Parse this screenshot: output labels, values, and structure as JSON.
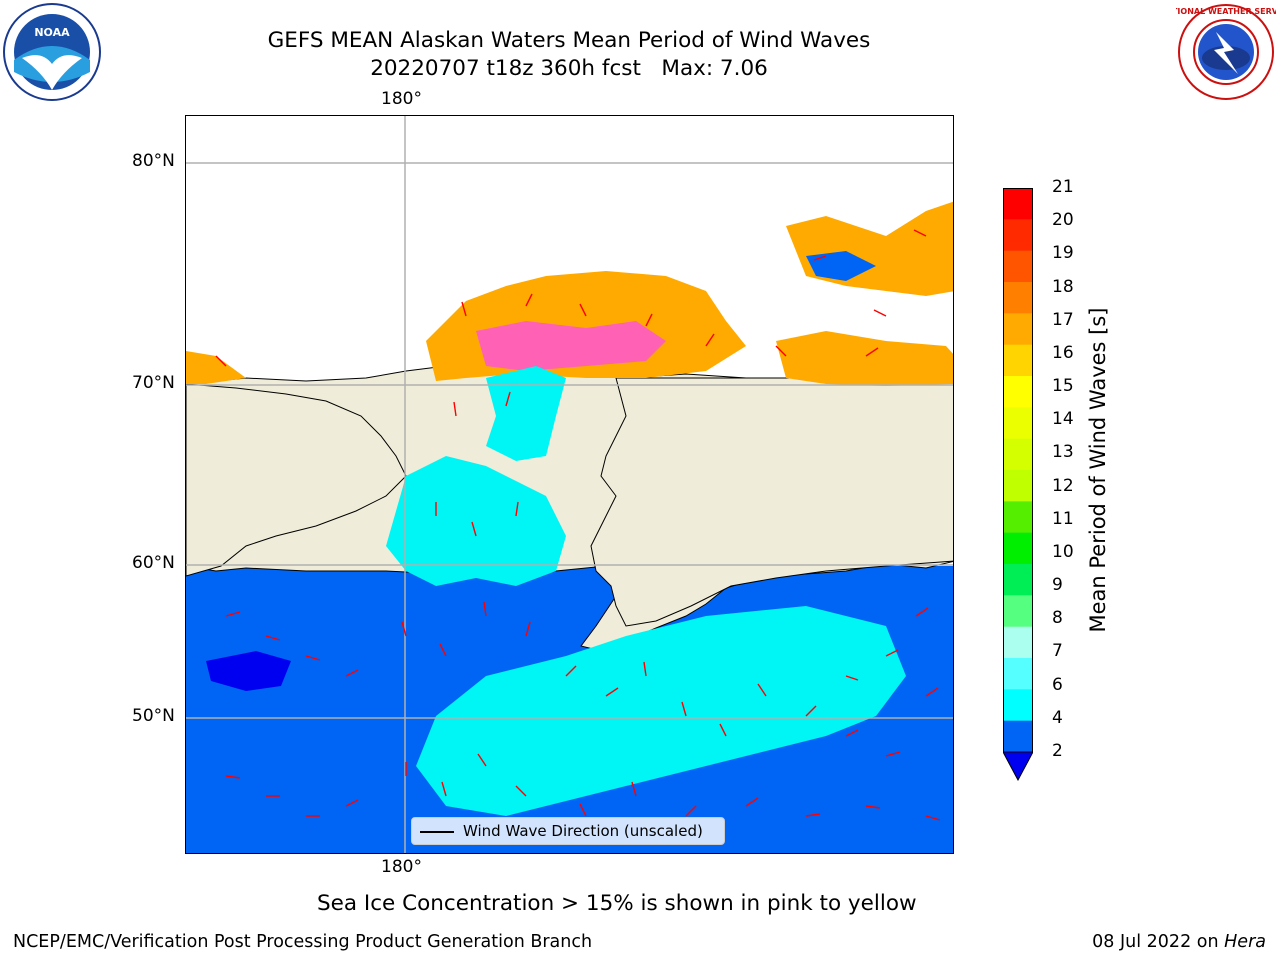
{
  "title": {
    "line1": "GEFS MEAN Alaskan Waters Mean Period of Wind Waves",
    "line2": "20220707 t18z 360h fcst   Max: 7.06"
  },
  "logos": {
    "left": {
      "icon": "noaa-logo",
      "text": "NOAA"
    },
    "right": {
      "icon": "nws-logo",
      "text": "NATIONAL WEATHER SERVICE"
    }
  },
  "map": {
    "top_lon_label": "180°",
    "bottom_lon_label": "180°",
    "lat_labels": [
      "80°N",
      "70°N",
      "60°N",
      "50°N"
    ],
    "legend_text": "Wind Wave Direction (unscaled)",
    "colors": {
      "land": "#efedd9",
      "ocean_low": "#0064f5",
      "ocean_mid": "#00f5f5",
      "deep": "#0000f0",
      "arrows": "#ff0000"
    }
  },
  "colorbar": {
    "label": "Mean Period of Wind Waves [s]",
    "ticks": [
      "21",
      "20",
      "19",
      "18",
      "17",
      "16",
      "15",
      "14",
      "13",
      "12",
      "11",
      "10",
      "9",
      "8",
      "7",
      "6",
      "4",
      "2"
    ],
    "colors": [
      "#ff0000",
      "#ff2a00",
      "#ff5500",
      "#ff8000",
      "#ffaa00",
      "#ffd400",
      "#ffff00",
      "#ecff00",
      "#d4ff00",
      "#bfff00",
      "#55ee00",
      "#00ee00",
      "#00ee55",
      "#55ff80",
      "#aaffee",
      "#55ffff",
      "#00ffff",
      "#0064f5"
    ],
    "extend_color": "#0000f0"
  },
  "ice_note": "Sea Ice Concentration > 15% is shown in pink to yellow",
  "footer": {
    "left": "NCEP/EMC/Verification Post Processing Product Generation Branch",
    "right_date": "08 Jul 2022 on",
    "right_host": "Hera"
  }
}
